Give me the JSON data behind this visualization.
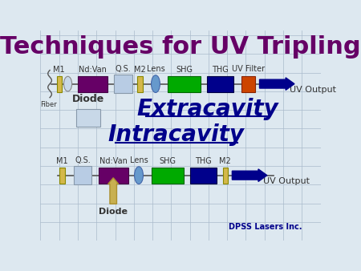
{
  "title": "Techniques for UV Tripling",
  "title_color": "#660066",
  "title_fontsize": 22,
  "background_color": "#dde8f0",
  "extracavity_label": "Extracavity",
  "intracavity_label": "Intracavity",
  "ec_label_color": "#00008B",
  "ec_label_fontsize": 20,
  "colors": {
    "mirror": "#d4b84a",
    "nd_van": "#660066",
    "qs": "#b8cce4",
    "lens": "#6699cc",
    "shg": "#00aa00",
    "thg": "#00008B",
    "uv_filter": "#cc4400",
    "arrow": "#00008B",
    "diode_box": "#c8d8e8",
    "diode_arrow": "#c8b050"
  },
  "line_color": "#555555",
  "uv_output_color": "#333333",
  "grid_color": "#aabbcc"
}
